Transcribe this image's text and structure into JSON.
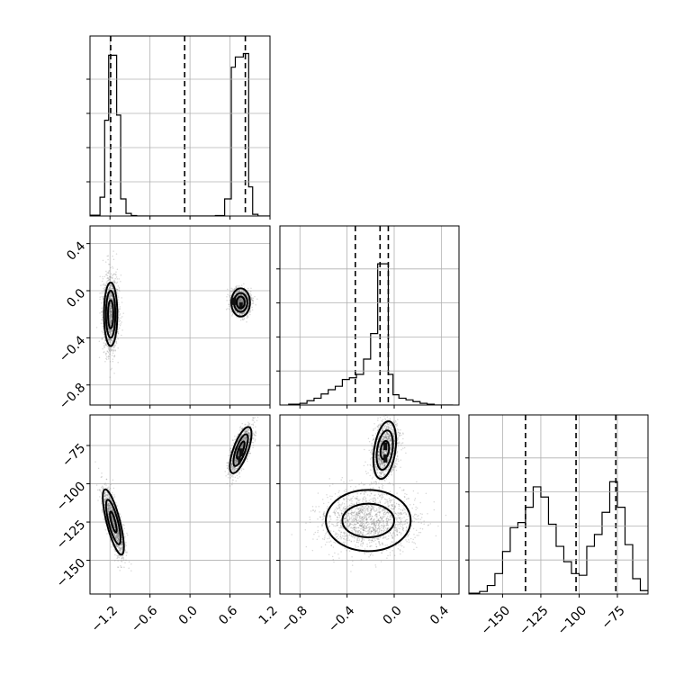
{
  "chart_data": {
    "type": "corner",
    "colors": {
      "line": "#000000",
      "grid": "#b0b0b0",
      "points": "#7f7f7f"
    },
    "grid": true,
    "params": [
      {
        "range": [
          -1.5,
          1.2
        ],
        "ticks": [
          -1.2,
          -0.6,
          0.0,
          0.6,
          1.2
        ],
        "tick_labels": [
          "−1.2",
          "−0.6",
          "0.0",
          "0.6",
          "1.2"
        ],
        "quantiles": [
          -1.19,
          -0.08,
          0.83
        ],
        "hist": {
          "edges": [
            -1.5,
            -1.35,
            -1.28,
            -1.22,
            -1.16,
            -1.1,
            -1.04,
            -0.96,
            -0.88,
            -0.8,
            0.38,
            0.52,
            0.62,
            0.68,
            0.72,
            0.76,
            0.8,
            0.84,
            0.88,
            0.94,
            1.02,
            1.2
          ],
          "counts": [
            0.005,
            0.11,
            0.56,
            0.94,
            0.94,
            0.59,
            0.1,
            0.015,
            0.003,
            0.0,
            0.003,
            0.1,
            0.87,
            0.93,
            0.93,
            0.93,
            0.95,
            0.95,
            0.17,
            0.01,
            0.0
          ]
        }
      },
      {
        "range": [
          -0.97,
          0.55
        ],
        "ticks": [
          -0.8,
          -0.4,
          0.0,
          0.4
        ],
        "tick_labels": [
          "−0.8",
          "−0.4",
          "0.0",
          "0.4"
        ],
        "quantiles": [
          -0.33,
          -0.12,
          -0.05
        ],
        "hist": {
          "edges": [
            -0.9,
            -0.8,
            -0.74,
            -0.68,
            -0.62,
            -0.56,
            -0.5,
            -0.44,
            -0.38,
            -0.32,
            -0.26,
            -0.2,
            -0.14,
            -0.11,
            -0.05,
            -0.01,
            0.04,
            0.1,
            0.16,
            0.22,
            0.28,
            0.34,
            0.5
          ],
          "counts": [
            0.005,
            0.01,
            0.025,
            0.04,
            0.065,
            0.09,
            0.11,
            0.15,
            0.16,
            0.18,
            0.27,
            0.42,
            0.83,
            0.83,
            0.18,
            0.06,
            0.04,
            0.03,
            0.02,
            0.01,
            0.005,
            0.0
          ]
        }
      },
      {
        "range": [
          -172,
          -55
        ],
        "ticks": [
          -150,
          -125,
          -100,
          -75
        ],
        "tick_labels": [
          "−150",
          "−125",
          "−100",
          "−75"
        ],
        "quantiles": [
          -135,
          -102,
          -76
        ],
        "hist": {
          "edges": [
            -172,
            -165,
            -160,
            -155,
            -150,
            -145,
            -140,
            -135,
            -130,
            -125,
            -120,
            -115,
            -110,
            -105,
            -100,
            -95,
            -90,
            -85,
            -80,
            -75,
            -70,
            -65,
            -60,
            -55
          ],
          "counts": [
            0.005,
            0.015,
            0.05,
            0.12,
            0.25,
            0.39,
            0.42,
            0.51,
            0.63,
            0.57,
            0.41,
            0.28,
            0.19,
            0.12,
            0.11,
            0.28,
            0.35,
            0.48,
            0.66,
            0.51,
            0.29,
            0.09,
            0.02
          ]
        }
      }
    ],
    "blobs": [
      {
        "pair": [
          0,
          1
        ],
        "cx": -1.19,
        "cy": -0.2,
        "sx": 0.06,
        "sy": 0.16,
        "rot": 0,
        "n": 1400
      },
      {
        "pair": [
          0,
          1
        ],
        "cx": 0.76,
        "cy": -0.1,
        "sx": 0.07,
        "sy": 0.05,
        "rot": 0,
        "n": 1400
      },
      {
        "pair": [
          0,
          2
        ],
        "cx": -1.15,
        "cy": -125,
        "sx": 0.05,
        "sy": 11,
        "rot": -0.25,
        "n": 1400
      },
      {
        "pair": [
          0,
          2
        ],
        "cx": 0.76,
        "cy": -78,
        "sx": 0.055,
        "sy": 8,
        "rot": 0.35,
        "n": 1400
      },
      {
        "pair": [
          1,
          2
        ],
        "cx": -0.22,
        "cy": -124,
        "sx": 0.2,
        "sy": 10,
        "rot": 0,
        "n": 1600
      },
      {
        "pair": [
          1,
          2
        ],
        "cx": -0.08,
        "cy": -78,
        "sx": 0.05,
        "sy": 9,
        "rot": 0.15,
        "n": 1400
      }
    ],
    "contours": [
      {
        "pair": [
          0,
          1
        ],
        "cx": -1.19,
        "cy": -0.2,
        "rx": [
          0.1,
          0.07,
          0.04
        ],
        "ry": [
          0.27,
          0.2,
          0.12
        ],
        "rot": 0
      },
      {
        "pair": [
          0,
          1
        ],
        "cx": 0.76,
        "cy": -0.1,
        "rx": [
          0.14,
          0.1,
          0.06
        ],
        "ry": [
          0.12,
          0.08,
          0.05
        ],
        "rot": 0
      },
      {
        "pair": [
          0,
          2
        ],
        "cx": -1.15,
        "cy": -125,
        "rx": [
          0.1,
          0.07,
          0.03
        ],
        "ry": [
          22,
          15,
          7
        ],
        "rot": -0.25
      },
      {
        "pair": [
          0,
          2
        ],
        "cx": 0.76,
        "cy": -78,
        "rx": [
          0.11,
          0.07,
          0.035
        ],
        "ry": [
          16,
          11,
          6
        ],
        "rot": 0.35
      },
      {
        "pair": [
          1,
          2
        ],
        "cx": -0.22,
        "cy": -124,
        "rx": [
          0.36,
          0.22
        ],
        "ry": [
          20,
          11
        ],
        "rot": 0
      },
      {
        "pair": [
          1,
          2
        ],
        "cx": -0.08,
        "cy": -78,
        "rx": [
          0.09,
          0.065,
          0.035
        ],
        "ry": [
          19,
          13,
          6
        ],
        "rot": 0.15
      }
    ],
    "dense": [
      {
        "pair": [
          0,
          1
        ],
        "cells": [
          [
            0.62,
            -0.12,
            0.07,
            0.06
          ],
          [
            0.74,
            -0.14,
            0.05,
            0.04
          ]
        ]
      },
      {
        "pair": [
          0,
          2
        ],
        "cells": [
          [
            0.72,
            -87,
            0.04,
            5
          ],
          [
            0.74,
            -82,
            0.06,
            5
          ]
        ]
      },
      {
        "pair": [
          1,
          2
        ],
        "cells": [
          [
            -0.09,
            -86,
            0.03,
            5
          ],
          [
            -0.09,
            -78,
            0.03,
            5
          ]
        ]
      }
    ]
  }
}
